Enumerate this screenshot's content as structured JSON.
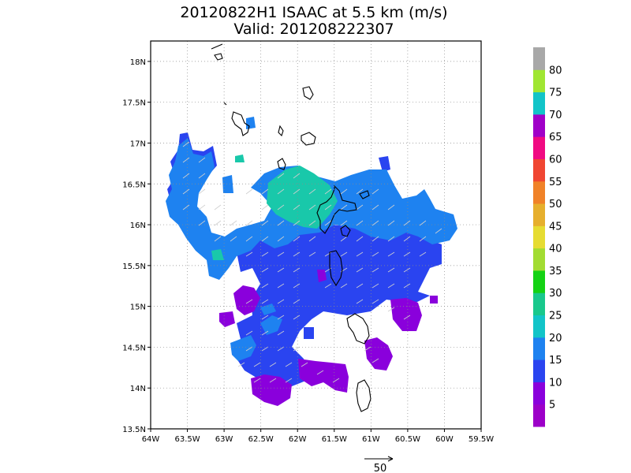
{
  "title": {
    "line1": "20120822H1 ISAAC at 5.5 km (m/s)",
    "line2": "Valid: 201208222307"
  },
  "map": {
    "lon_range": [
      -64.0,
      -59.5
    ],
    "lat_range": [
      13.5,
      18.25
    ],
    "x_ticks": [
      {
        "value": -64.0,
        "label": "64W"
      },
      {
        "value": -63.5,
        "label": "63.5W"
      },
      {
        "value": -63.0,
        "label": "63W"
      },
      {
        "value": -62.5,
        "label": "62.5W"
      },
      {
        "value": -62.0,
        "label": "62W"
      },
      {
        "value": -61.5,
        "label": "61.5W"
      },
      {
        "value": -61.0,
        "label": "61W"
      },
      {
        "value": -60.5,
        "label": "60.5W"
      },
      {
        "value": -60.0,
        "label": "60W"
      },
      {
        "value": -59.5,
        "label": "59.5W"
      }
    ],
    "y_ticks": [
      {
        "value": 13.5,
        "label": "13.5N"
      },
      {
        "value": 14.0,
        "label": "14N"
      },
      {
        "value": 14.5,
        "label": "14.5N"
      },
      {
        "value": 15.0,
        "label": "15N"
      },
      {
        "value": 15.5,
        "label": "15.5N"
      },
      {
        "value": 16.0,
        "label": "16N"
      },
      {
        "value": 16.5,
        "label": "16.5N"
      },
      {
        "value": 17.0,
        "label": "17N"
      },
      {
        "value": 17.5,
        "label": "17.5N"
      },
      {
        "value": 18.0,
        "label": "18N"
      }
    ],
    "gridlines": true
  },
  "colorbar": {
    "colors": [
      "#9c00c8",
      "#8a00dc",
      "#2a44f0",
      "#1e82f0",
      "#12c4c8",
      "#19c88c",
      "#14d214",
      "#a2dc32",
      "#e6dc32",
      "#e6af2d",
      "#f08228",
      "#f04632",
      "#f00a82",
      "#a000c8",
      "#12c4c8",
      "#a0e632",
      "#a8a8a8"
    ],
    "labels": [
      "5",
      "10",
      "15",
      "20",
      "25",
      "30",
      "35",
      "40",
      "45",
      "50",
      "55",
      "60",
      "65",
      "70",
      "75",
      "80"
    ]
  },
  "reference_vector": {
    "label": "50"
  },
  "legend_colors": {
    "c5": "#9c00c8",
    "c10": "#8a00dc",
    "c15": "#2a44f0",
    "c20": "#1e82f0",
    "c25": "#12c4c8"
  }
}
